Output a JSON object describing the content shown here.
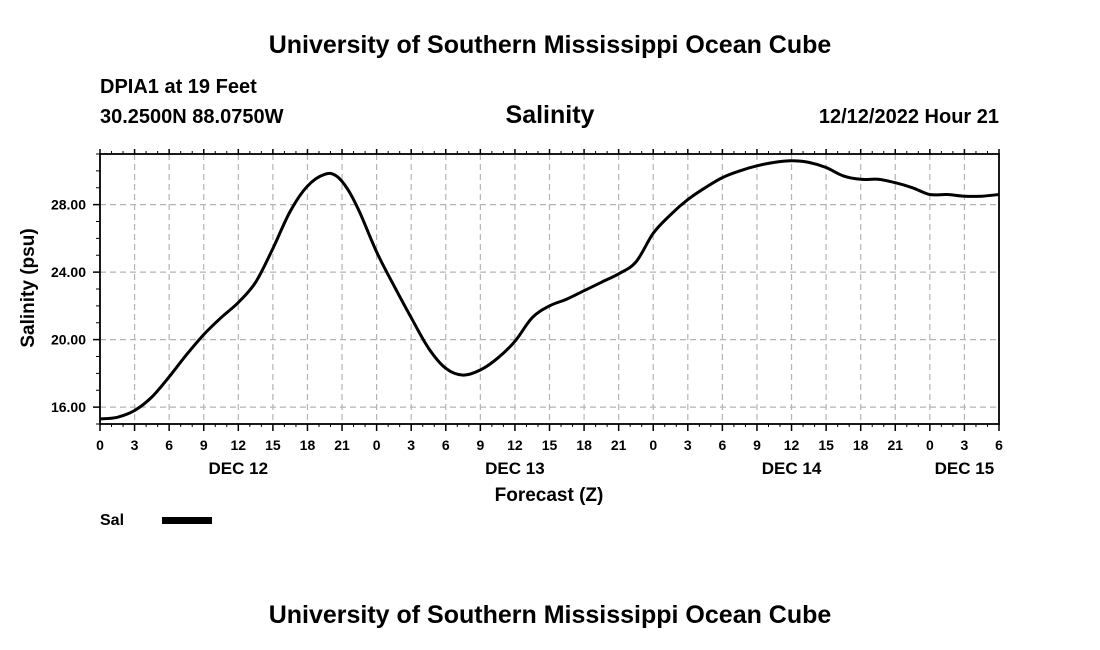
{
  "header": {
    "title": "University of Southern Mississippi Ocean Cube",
    "station": "DPIA1 at 19 Feet",
    "coords": "30.2500N  88.0750W",
    "variable": "Salinity",
    "issued": "12/12/2022 Hour 21"
  },
  "footer": {
    "title": "University of Southern Mississippi Ocean Cube"
  },
  "legend": {
    "label": "Sal"
  },
  "colors": {
    "line": "#000000",
    "grid": "#b4b4b4",
    "axis": "#000000"
  },
  "chart_data": {
    "type": "line",
    "title": "Salinity",
    "xlabel": "Forecast (Z)",
    "ylabel": "Salinity (psu)",
    "xlim": [
      0,
      78
    ],
    "ylim": [
      15,
      31
    ],
    "yticks": [
      16,
      20,
      24,
      28
    ],
    "ytick_labels": [
      "16.00",
      "20.00",
      "24.00",
      "28.00"
    ],
    "xticks": [
      0,
      3,
      6,
      9,
      12,
      15,
      18,
      21,
      24,
      27,
      30,
      33,
      36,
      39,
      42,
      45,
      48,
      51,
      54,
      57,
      60,
      63,
      66,
      69,
      72,
      75,
      78
    ],
    "xtick_labels": [
      "0",
      "3",
      "6",
      "9",
      "12",
      "15",
      "18",
      "21",
      "0",
      "3",
      "6",
      "9",
      "12",
      "15",
      "18",
      "21",
      "0",
      "3",
      "6",
      "9",
      "12",
      "15",
      "18",
      "21",
      "0",
      "3",
      "6"
    ],
    "date_labels": [
      {
        "x": 12,
        "label": "DEC 12"
      },
      {
        "x": 36,
        "label": "DEC 13"
      },
      {
        "x": 60,
        "label": "DEC 14"
      },
      {
        "x": 75,
        "label": "DEC 15"
      }
    ],
    "grid": true,
    "series": [
      {
        "name": "Sal",
        "x": [
          0,
          1.5,
          3,
          4.5,
          6,
          7.5,
          9,
          10.5,
          12,
          13.5,
          15,
          16.5,
          18,
          19.5,
          20.5,
          21.5,
          22.5,
          24,
          25.5,
          27,
          28.5,
          30,
          31.5,
          33,
          34.5,
          36,
          37.5,
          39,
          40.5,
          42,
          43.5,
          45,
          46.5,
          48,
          49.5,
          51,
          52.5,
          54,
          55.5,
          57,
          58.5,
          60,
          61.5,
          63,
          64.5,
          66,
          67.5,
          69,
          70.5,
          72,
          73.5,
          75,
          76.5,
          78
        ],
        "values": [
          15.3,
          15.4,
          15.8,
          16.6,
          17.8,
          19.1,
          20.3,
          21.3,
          22.2,
          23.4,
          25.4,
          27.6,
          29.1,
          29.8,
          29.7,
          28.9,
          27.6,
          25.2,
          23.2,
          21.3,
          19.5,
          18.3,
          17.9,
          18.2,
          18.9,
          19.9,
          21.3,
          22.0,
          22.4,
          22.9,
          23.4,
          23.9,
          24.6,
          26.3,
          27.4,
          28.3,
          29.0,
          29.6,
          30.0,
          30.3,
          30.5,
          30.6,
          30.5,
          30.2,
          29.7,
          29.5,
          29.5,
          29.3,
          29.0,
          28.6,
          28.6,
          28.5,
          28.5,
          28.6
        ]
      }
    ]
  }
}
